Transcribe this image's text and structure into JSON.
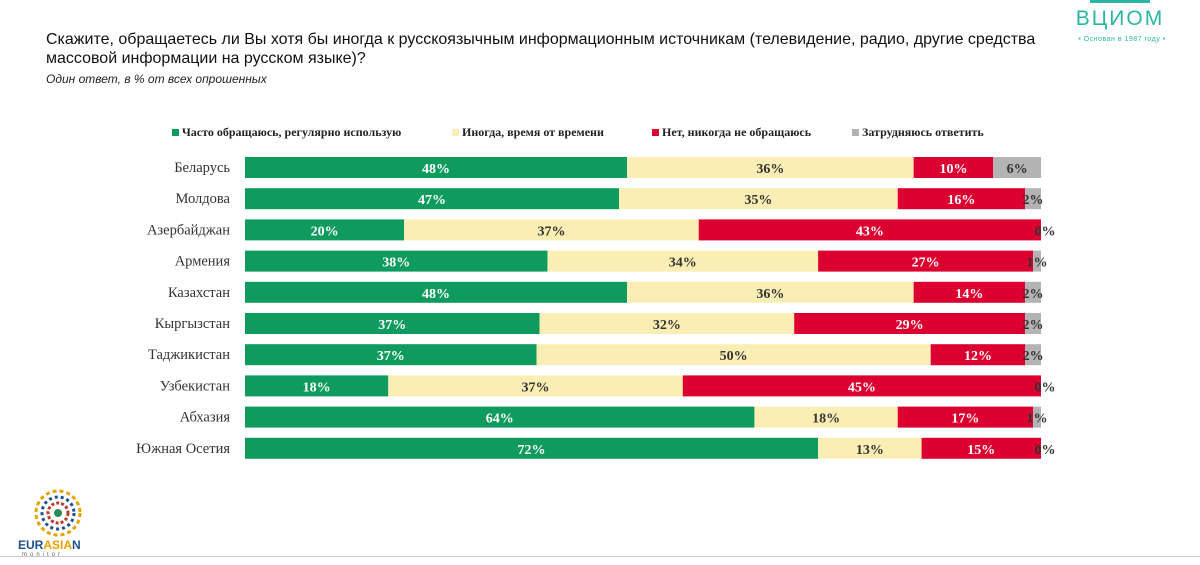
{
  "header": {
    "title": "Скажите, обращаетесь ли Вы хотя бы иногда к русскоязычным информационным источникам (телевидение, радио, другие средства массовой информации на русском языке)?",
    "subtitle": "Один ответ, в % от всех опрошенных"
  },
  "logos": {
    "vciom": {
      "wordmark": "ВЦИОМ",
      "tagline": "• Основан в 1987 году •"
    },
    "eurasian": {
      "part1": "EUR",
      "part2": "ASIA",
      "part3": "N",
      "sub": "monitor"
    }
  },
  "colors": {
    "often": "#0e9b5d",
    "sometimes": "#fbeeb4",
    "never": "#db0030",
    "hard": "#b3b3b3"
  },
  "chart_data": {
    "type": "bar",
    "orientation": "horizontal",
    "stacked": true,
    "legend_position": "top",
    "categories": [
      "Беларусь",
      "Молдова",
      "Азербайджан",
      "Армения",
      "Казахстан",
      "Кыргызстан",
      "Таджикистан",
      "Узбекистан",
      "Абхазия",
      "Южная Осетия"
    ],
    "series": [
      {
        "name": "Часто обращаюсь, регулярно использую",
        "color": "#0e9b5d",
        "values": [
          48,
          47,
          20,
          38,
          48,
          37,
          37,
          18,
          64,
          72
        ],
        "labels": [
          "48%",
          "47%",
          "20%",
          "38%",
          "48%",
          "37%",
          "37%",
          "18%",
          "64%",
          "72%"
        ]
      },
      {
        "name": "Иногда, время от времени",
        "color": "#fbeeb4",
        "values": [
          36,
          35,
          37,
          34,
          36,
          32,
          50,
          37,
          18,
          13
        ],
        "labels": [
          "36%",
          "35%",
          "37%",
          "34%",
          "36%",
          "32%",
          "50%",
          "37%",
          "18%",
          "13%"
        ]
      },
      {
        "name": "Нет, никогда не обращаюсь",
        "color": "#db0030",
        "values": [
          10,
          16,
          43,
          27,
          14,
          29,
          12,
          45,
          17,
          15
        ],
        "labels": [
          "10%",
          "16%",
          "43%",
          "27%",
          "14%",
          "29%",
          "12%",
          "45%",
          "17%",
          "15%"
        ]
      },
      {
        "name": "Затрудняюсь ответить",
        "color": "#b3b3b3",
        "values": [
          6,
          2,
          0,
          1,
          2,
          2,
          2,
          0,
          1,
          0
        ],
        "labels": [
          "6%",
          "2%",
          "0%",
          "1%",
          "2%",
          "2%",
          "2%",
          "0%",
          "1%",
          "0%"
        ]
      }
    ]
  }
}
